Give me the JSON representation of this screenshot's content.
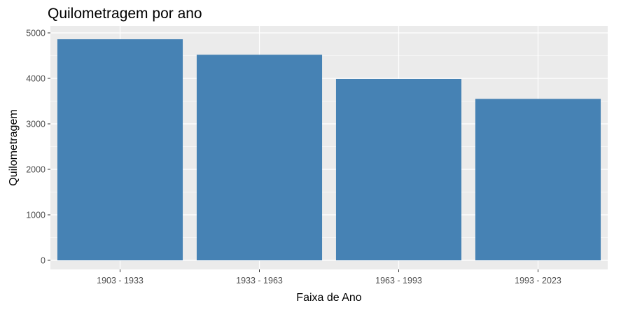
{
  "chart_data": {
    "type": "bar",
    "title": "Quilometragem por ano",
    "xlabel": "Faixa de Ano",
    "ylabel": "Quilometragem",
    "categories": [
      "1903 - 1933",
      "1933 - 1963",
      "1963 - 1993",
      "1993 - 2023"
    ],
    "values": [
      4860,
      4520,
      3985,
      3550
    ],
    "ylim": [
      0,
      5000
    ],
    "yticks": [
      0,
      1000,
      2000,
      3000,
      4000,
      5000
    ],
    "grid": true,
    "legend": "none",
    "colors": {
      "bar": "#4682B4",
      "panel": "#EBEBEB",
      "grid": "#FFFFFF"
    }
  }
}
